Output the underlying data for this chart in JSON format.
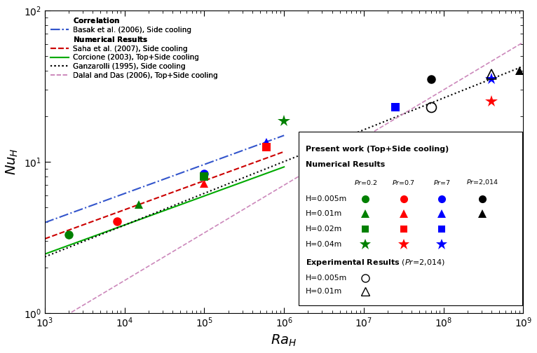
{
  "xlim": [
    1000,
    1000000000
  ],
  "ylim": [
    1,
    100
  ],
  "xlabel": "$Ra_H$",
  "ylabel": "$Nu_H$",
  "corr_colors": {
    "basak": "#3355cc",
    "saha": "#cc0000",
    "corcione": "#00aa00",
    "ganzarolli": "#000000",
    "dalal": "#cc88bb"
  },
  "scatter_numerical": [
    {
      "Ra": 2000,
      "Nu": 3.3,
      "color": "green",
      "marker": "o",
      "ms": 9
    },
    {
      "Ra": 8000,
      "Nu": 4.05,
      "color": "red",
      "marker": "o",
      "ms": 9
    },
    {
      "Ra": 100000,
      "Nu": 8.3,
      "color": "blue",
      "marker": "o",
      "ms": 9
    },
    {
      "Ra": 70000000,
      "Nu": 35.0,
      "color": "black",
      "marker": "o",
      "ms": 9
    },
    {
      "Ra": 15000,
      "Nu": 5.2,
      "color": "green",
      "marker": "^",
      "ms": 9
    },
    {
      "Ra": 100000,
      "Nu": 7.2,
      "color": "red",
      "marker": "^",
      "ms": 9
    },
    {
      "Ra": 600000,
      "Nu": 13.5,
      "color": "blue",
      "marker": "^",
      "ms": 9
    },
    {
      "Ra": 900000000,
      "Nu": 40.0,
      "color": "black",
      "marker": "^",
      "ms": 9
    },
    {
      "Ra": 100000,
      "Nu": 8.0,
      "color": "green",
      "marker": "s",
      "ms": 8
    },
    {
      "Ra": 600000,
      "Nu": 12.5,
      "color": "red",
      "marker": "s",
      "ms": 8
    },
    {
      "Ra": 25000000,
      "Nu": 23.0,
      "color": "blue",
      "marker": "s",
      "ms": 8
    },
    {
      "Ra": 1000000,
      "Nu": 18.5,
      "color": "green",
      "marker": "*",
      "ms": 13
    },
    {
      "Ra": 400000000,
      "Nu": 25.0,
      "color": "red",
      "marker": "*",
      "ms": 13
    },
    {
      "Ra": 400000000,
      "Nu": 35.0,
      "color": "blue",
      "marker": "*",
      "ms": 13
    }
  ],
  "scatter_experimental": [
    {
      "Ra": 70000000,
      "Nu": 23.0,
      "marker": "o",
      "ms": 10
    },
    {
      "Ra": 400000000,
      "Nu": 38.0,
      "marker": "^",
      "ms": 10
    }
  ],
  "legend1": {
    "Correlation": "",
    "basak_label": "Basak et al. (2006), Side cooling",
    "num_label": "Numerical Results",
    "saha_label": "Saha et al. (2007), Side cooling",
    "corcione_label": "Corcione (2003), Top+Side cooling",
    "ganz_label": "Ganzarolli (1995), Side cooling",
    "dalal_label": "Dalal and Das (2006), Top+Side cooling"
  },
  "pr_labels": [
    "Pr =0.2",
    "Pr =0.7",
    "Pr =7",
    "Pr =2,014"
  ],
  "h_labels": [
    "H=0.005m",
    "H=0.01m",
    "H=0.02m",
    "H=0.04m"
  ],
  "markers": [
    "o",
    "^",
    "s",
    "*"
  ],
  "marker_ms": [
    9,
    9,
    8,
    13
  ],
  "colors_pw": [
    "green",
    "red",
    "blue",
    "black"
  ],
  "exp_h_labels": [
    "H=0.005m",
    "H=0.01m"
  ]
}
